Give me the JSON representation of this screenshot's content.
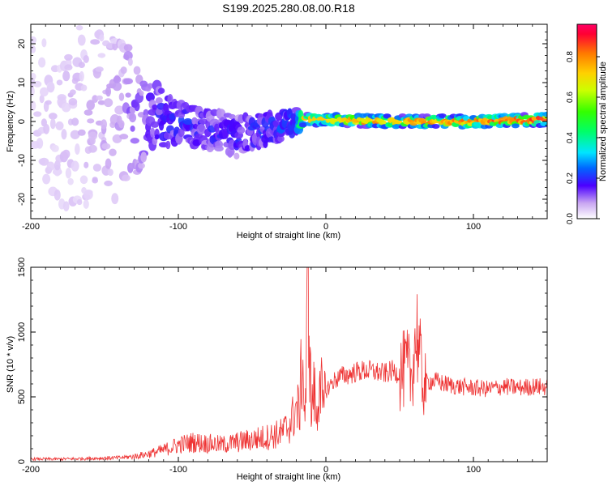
{
  "title": "S199.2025.280.08.00.R18",
  "colorbar": {
    "label": "Normalized spectral amplitude",
    "ticks": [
      0.0,
      0.2,
      0.4,
      0.6,
      0.8
    ],
    "tick_labels": [
      "0.0",
      "0.2",
      "0.4",
      "0.6",
      "0.8"
    ],
    "range": [
      0.0,
      0.96
    ]
  },
  "chart_data": [
    {
      "type": "heatmap",
      "xlabel": "Height of straight line (km)",
      "ylabel": "Frequency (Hz)",
      "xlim": [
        -200,
        150
      ],
      "ylim": [
        -25,
        25
      ],
      "xticks": [
        -200,
        -100,
        0,
        100
      ],
      "xtick_labels": [
        "-200",
        "-100",
        "0",
        "100"
      ],
      "yticks": [
        -20,
        -10,
        0,
        10,
        20
      ],
      "ytick_labels": [
        "-20",
        "-10",
        "0",
        "10",
        "20"
      ],
      "trend": [
        {
          "x": -200,
          "y_center": 0,
          "spread": 25,
          "amplitude": 0.05
        },
        {
          "x": -140,
          "y_center": 2,
          "spread": 22,
          "amplitude": 0.1
        },
        {
          "x": -120,
          "y_center": 1,
          "spread": 10,
          "amplitude": 0.2
        },
        {
          "x": -100,
          "y_center": 0,
          "spread": 5,
          "amplitude": 0.25
        },
        {
          "x": -80,
          "y_center": -2,
          "spread": 5,
          "amplitude": 0.22
        },
        {
          "x": -60,
          "y_center": -4,
          "spread": 5,
          "amplitude": 0.22
        },
        {
          "x": -40,
          "y_center": -2,
          "spread": 4,
          "amplitude": 0.25
        },
        {
          "x": -20,
          "y_center": 0,
          "spread": 3,
          "amplitude": 0.3
        },
        {
          "x": -16,
          "y_center": 0.5,
          "spread": 1.5,
          "amplitude": 0.75
        },
        {
          "x": 0,
          "y_center": 0.5,
          "spread": 1.5,
          "amplitude": 0.8
        },
        {
          "x": 50,
          "y_center": 0,
          "spread": 1.5,
          "amplitude": 0.8
        },
        {
          "x": 100,
          "y_center": 0,
          "spread": 1.5,
          "amplitude": 0.85
        },
        {
          "x": 150,
          "y_center": 0.5,
          "spread": 1.5,
          "amplitude": 0.9
        }
      ]
    },
    {
      "type": "line",
      "xlabel": "Height of straight line (km)",
      "ylabel": "SNR (10 * v/v)",
      "xlim": [
        -200,
        150
      ],
      "ylim": [
        0,
        1500
      ],
      "xticks": [
        -200,
        -100,
        0,
        100
      ],
      "xtick_labels": [
        "-200",
        "-100",
        "0",
        "100"
      ],
      "yticks": [
        0,
        500,
        1000,
        1500
      ],
      "ytick_labels": [
        "0",
        "500",
        "1000",
        "1500"
      ],
      "series": [
        {
          "color": "#ee3333",
          "x": [
            -200,
            -180,
            -160,
            -140,
            -130,
            -120,
            -110,
            -100,
            -90,
            -80,
            -70,
            -60,
            -50,
            -40,
            -30,
            -25,
            -22,
            -20,
            -18,
            -16,
            -14,
            -12,
            -10,
            -8,
            -6,
            -4,
            -2,
            0,
            5,
            10,
            15,
            20,
            25,
            30,
            35,
            40,
            45,
            50,
            55,
            58,
            60,
            62,
            64,
            66,
            70,
            75,
            80,
            90,
            100,
            110,
            120,
            130,
            140,
            150
          ],
          "y": [
            20,
            20,
            25,
            30,
            40,
            60,
            90,
            130,
            150,
            140,
            130,
            150,
            170,
            190,
            220,
            280,
            350,
            420,
            380,
            820,
            300,
            1500,
            400,
            550,
            300,
            780,
            350,
            550,
            620,
            660,
            670,
            690,
            700,
            700,
            690,
            680,
            700,
            680,
            720,
            650,
            900,
            1000,
            750,
            600,
            620,
            620,
            600,
            580,
            570,
            560,
            580,
            570,
            580,
            575
          ]
        }
      ]
    }
  ]
}
